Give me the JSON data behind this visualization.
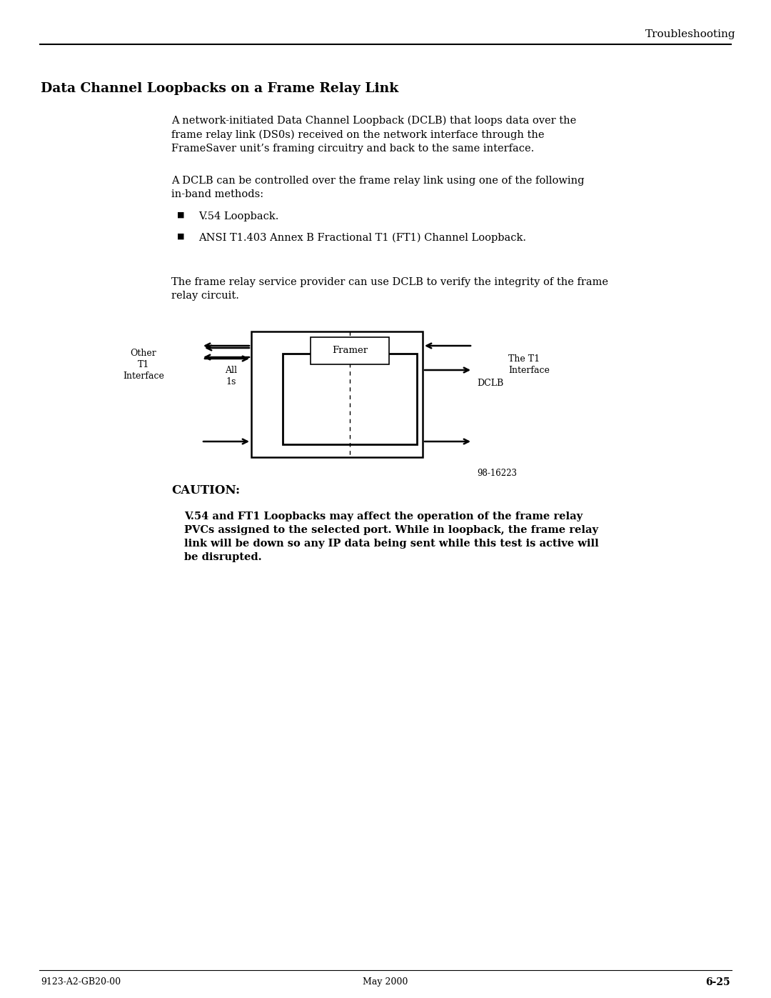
{
  "page_title": "Troubleshooting",
  "section_title": "Data Channel Loopbacks on a Frame Relay Link",
  "para1": "A network-initiated Data Channel Loopback (DCLB) that loops data over the\nframe relay link (DS0s) received on the network interface through the\nFrameSaver unit’s framing circuitry and back to the same interface.",
  "para2": "A DCLB can be controlled over the frame relay link using one of the following\nin-band methods:",
  "bullet1": "V.54 Loopback.",
  "bullet2": "ANSI T1.403 Annex B Fractional T1 (FT1) Channel Loopback.",
  "para3": "The frame relay service provider can use DCLB to verify the integrity of the frame\nrelay circuit.",
  "caution_title": "CAUTION:",
  "caution_body": "V.54 and FT1 Loopbacks may affect the operation of the frame relay\nPVCs assigned to the selected port. While in loopback, the frame relay\nlink will be down so any IP data being sent while this test is active will\nbe disrupted.",
  "diagram_label_framer": "Framer",
  "diagram_label_dclb": "DCLB",
  "diagram_label_other_t1": "Other\nT1\nInterface",
  "diagram_label_all_1s": "All\n1s",
  "diagram_label_the_t1": "The T1\nInterface",
  "diagram_fig_number": "98-16223",
  "footer_left": "9123-A2-GB20-00",
  "footer_center": "May 2000",
  "footer_right": "6-25",
  "bg_color": "#ffffff",
  "text_color": "#000000"
}
